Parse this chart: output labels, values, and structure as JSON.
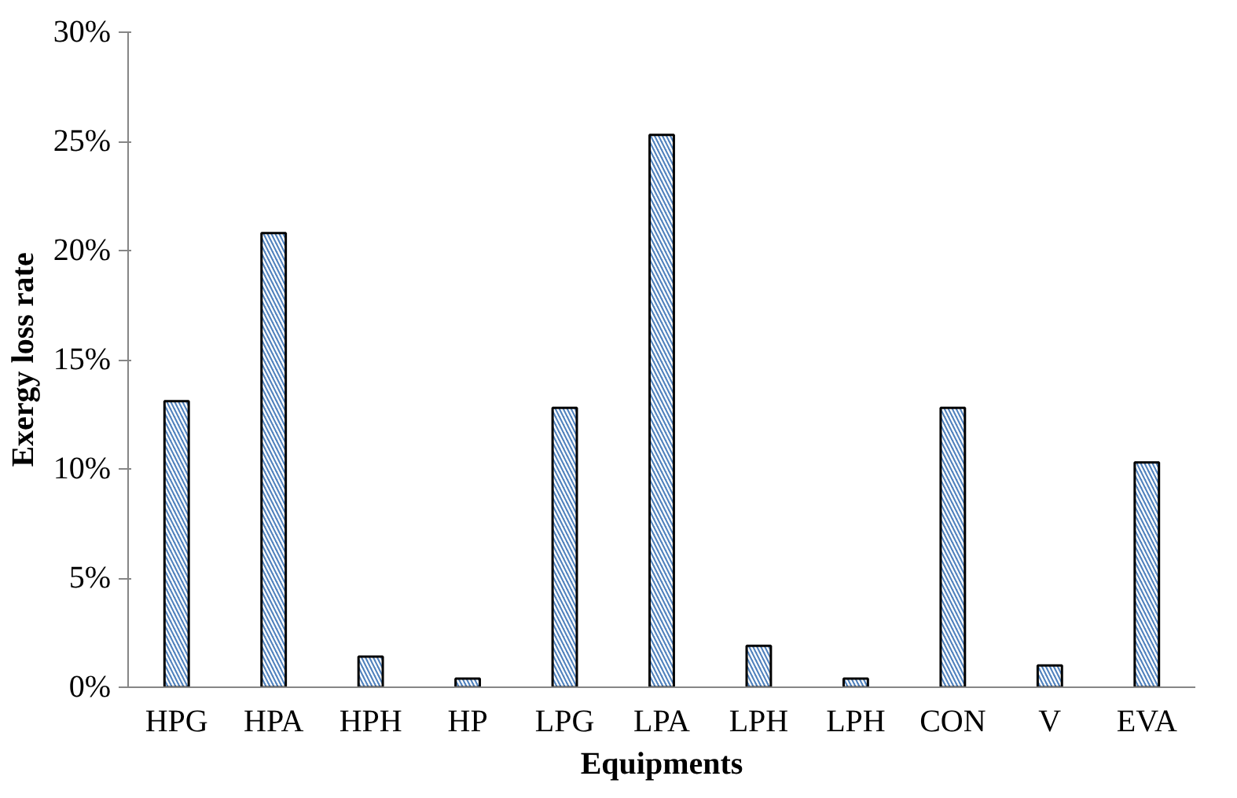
{
  "chart_data": {
    "type": "bar",
    "xlabel": "Equipments",
    "ylabel": "Exergy loss rate",
    "categories": [
      "HPG",
      "HPA",
      "HPH",
      "HP",
      "LPG",
      "LPA",
      "LPH",
      "LPH",
      "CON",
      "V",
      "EVA"
    ],
    "values": [
      13.1,
      20.8,
      1.4,
      0.4,
      12.8,
      25.3,
      1.9,
      0.4,
      12.8,
      1.0,
      10.3
    ],
    "color": "#4f81bd",
    "ylim": [
      0,
      30
    ],
    "yticks": [
      {
        "value": 0,
        "label": "0%"
      },
      {
        "value": 5,
        "label": "5%"
      },
      {
        "value": 10,
        "label": "10%"
      },
      {
        "value": 15,
        "label": "15%"
      },
      {
        "value": 20,
        "label": "20%"
      },
      {
        "value": 25,
        "label": "25%"
      },
      {
        "value": 30,
        "label": "30%"
      }
    ],
    "grid": false
  }
}
